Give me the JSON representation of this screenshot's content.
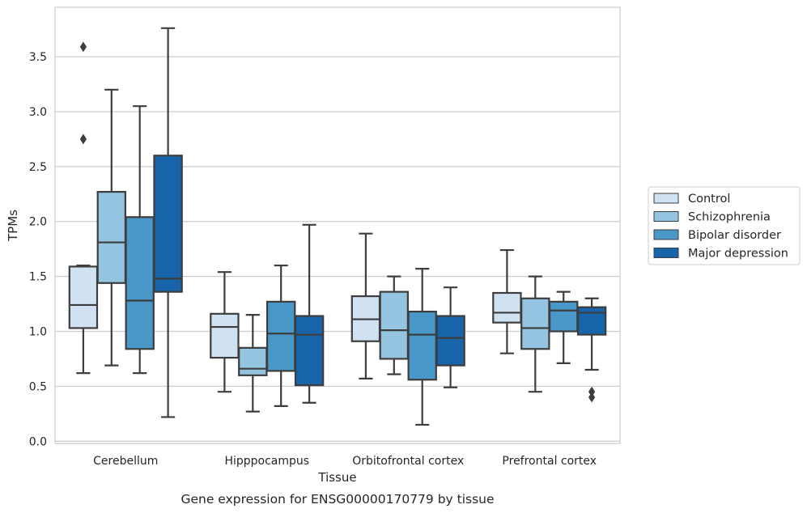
{
  "chart_data": {
    "type": "box",
    "title": "",
    "caption": "Gene expression for ENSG00000170779 by tissue",
    "xlabel": "Tissue",
    "ylabel": "TPMs",
    "ylim": [
      -0.02,
      3.95
    ],
    "yticks": [
      0.0,
      0.5,
      1.0,
      1.5,
      2.0,
      2.5,
      3.0,
      3.5
    ],
    "ytick_labels": [
      "0.0",
      "0.5",
      "1.0",
      "1.5",
      "2.0",
      "2.5",
      "3.0",
      "3.5"
    ],
    "grid": true,
    "legend_position": "right",
    "categories": [
      "Cerebellum",
      "Hipppocampus",
      "Orbitofrontal cortex",
      "Prefrontal cortex"
    ],
    "series": [
      {
        "name": "Control",
        "color": "#d0e1f2",
        "boxes": [
          {
            "whislo": 0.62,
            "q1": 1.03,
            "med": 1.24,
            "q3": 1.59,
            "whishi": 1.6,
            "fliers": [
              2.75,
              3.59
            ]
          },
          {
            "whislo": 0.45,
            "q1": 0.76,
            "med": 1.04,
            "q3": 1.16,
            "whishi": 1.54,
            "fliers": []
          },
          {
            "whislo": 0.57,
            "q1": 0.91,
            "med": 1.11,
            "q3": 1.32,
            "whishi": 1.89,
            "fliers": []
          },
          {
            "whislo": 0.8,
            "q1": 1.08,
            "med": 1.17,
            "q3": 1.35,
            "whishi": 1.74,
            "fliers": []
          }
        ]
      },
      {
        "name": "Schizophrenia",
        "color": "#94c4df",
        "boxes": [
          {
            "whislo": 0.69,
            "q1": 1.44,
            "med": 1.81,
            "q3": 2.27,
            "whishi": 3.2,
            "fliers": []
          },
          {
            "whislo": 0.27,
            "q1": 0.6,
            "med": 0.66,
            "q3": 0.85,
            "whishi": 1.15,
            "fliers": []
          },
          {
            "whislo": 0.61,
            "q1": 0.75,
            "med": 1.01,
            "q3": 1.36,
            "whishi": 1.5,
            "fliers": []
          },
          {
            "whislo": 0.45,
            "q1": 0.84,
            "med": 1.03,
            "q3": 1.3,
            "whishi": 1.5,
            "fliers": []
          }
        ]
      },
      {
        "name": "Bipolar disorder",
        "color": "#4a98c9",
        "boxes": [
          {
            "whislo": 0.62,
            "q1": 0.84,
            "med": 1.28,
            "q3": 2.04,
            "whishi": 3.05,
            "fliers": []
          },
          {
            "whislo": 0.32,
            "q1": 0.64,
            "med": 0.98,
            "q3": 1.27,
            "whishi": 1.6,
            "fliers": []
          },
          {
            "whislo": 0.15,
            "q1": 0.56,
            "med": 0.97,
            "q3": 1.18,
            "whishi": 1.57,
            "fliers": []
          },
          {
            "whislo": 0.71,
            "q1": 1.0,
            "med": 1.19,
            "q3": 1.27,
            "whishi": 1.36,
            "fliers": []
          }
        ]
      },
      {
        "name": "Major depression",
        "color": "#1764ab",
        "boxes": [
          {
            "whislo": 0.22,
            "q1": 1.36,
            "med": 1.48,
            "q3": 2.6,
            "whishi": 3.76,
            "fliers": []
          },
          {
            "whislo": 0.35,
            "q1": 0.51,
            "med": 0.97,
            "q3": 1.14,
            "whishi": 1.97,
            "fliers": []
          },
          {
            "whislo": 0.49,
            "q1": 0.69,
            "med": 0.94,
            "q3": 1.14,
            "whishi": 1.4,
            "fliers": []
          },
          {
            "whislo": 0.65,
            "q1": 0.97,
            "med": 1.17,
            "q3": 1.22,
            "whishi": 1.3,
            "fliers": [
              0.4,
              0.45
            ]
          }
        ]
      }
    ]
  }
}
